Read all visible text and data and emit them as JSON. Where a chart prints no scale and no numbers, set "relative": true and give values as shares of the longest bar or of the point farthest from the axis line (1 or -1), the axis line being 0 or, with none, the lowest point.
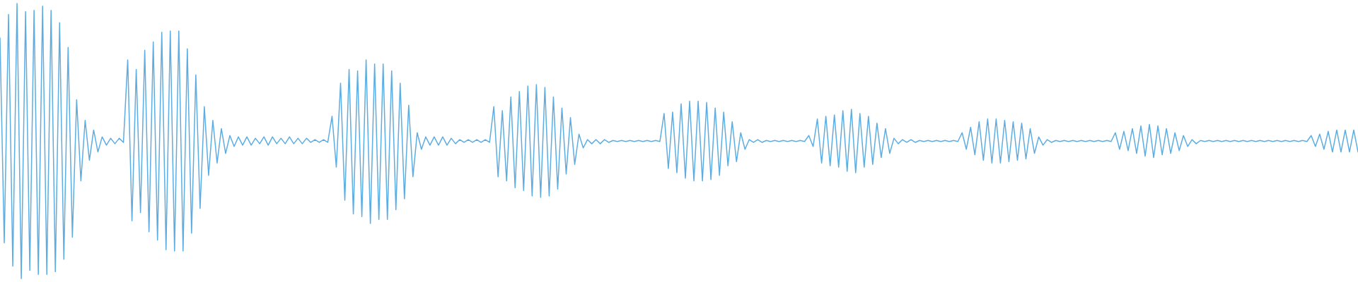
{
  "chart_data": {
    "type": "line",
    "relative": true,
    "color": "#5dade2",
    "categories": [
      null,
      null,
      null,
      null,
      null,
      null,
      null,
      null,
      null,
      null,
      null,
      null,
      null,
      null,
      null,
      null,
      null,
      null,
      null,
      null,
      null,
      null,
      null,
      null,
      null,
      null,
      null,
      null,
      null,
      null,
      null,
      null,
      null,
      null,
      null,
      null,
      null,
      null,
      null,
      null,
      null,
      null,
      null,
      null,
      null,
      null,
      null,
      null,
      null,
      null,
      null,
      null,
      null,
      null,
      null,
      null,
      null,
      null,
      null,
      null,
      null,
      null,
      null,
      null,
      null,
      null,
      null,
      null,
      null,
      null,
      null,
      null,
      null,
      null,
      null,
      null,
      null,
      null,
      null,
      null,
      null,
      null,
      null,
      null,
      null,
      null,
      null,
      null,
      null,
      null,
      null,
      null,
      null,
      null,
      null,
      null,
      null,
      null,
      null,
      null,
      null,
      null,
      null,
      null,
      null,
      null,
      null,
      null,
      null,
      null,
      null,
      null,
      null,
      null,
      null,
      null,
      null,
      null,
      null,
      null,
      null,
      null,
      null,
      null,
      null,
      null,
      null,
      null,
      null,
      null,
      null,
      null,
      null,
      null,
      null,
      null,
      null,
      null,
      null,
      null,
      null,
      null,
      null,
      null,
      null,
      null,
      null,
      null,
      null,
      null,
      null,
      null,
      null,
      null,
      null,
      null,
      null,
      null,
      null,
      null,
      null,
      null,
      null,
      null,
      null,
      null,
      null,
      null,
      null,
      null,
      null,
      null,
      null,
      null,
      null,
      null,
      null,
      null,
      null,
      null,
      null,
      null,
      null,
      null,
      null,
      null,
      null,
      null,
      null,
      null,
      null,
      null,
      null,
      null,
      null,
      null,
      null,
      null,
      null,
      null,
      null,
      null,
      null,
      null,
      null,
      null,
      null,
      null,
      null,
      null,
      null,
      null,
      null,
      null,
      null,
      null,
      null,
      null,
      null,
      null,
      null,
      null,
      null,
      null,
      null,
      null,
      null,
      null,
      null,
      null,
      null,
      null,
      null,
      null,
      null,
      null,
      null,
      null,
      null,
      null,
      null,
      null,
      null,
      null,
      null,
      null,
      null,
      null,
      null,
      null,
      null,
      null,
      null,
      null,
      null,
      null,
      null,
      null,
      null,
      null,
      null,
      null,
      null,
      null,
      null,
      null,
      null,
      null,
      null,
      null,
      null,
      null,
      null,
      null,
      null,
      null,
      null,
      null,
      null,
      null,
      null,
      null,
      null,
      null,
      null,
      null,
      null,
      null,
      null,
      null,
      null,
      null,
      null,
      null,
      null,
      null,
      null,
      null,
      null,
      null,
      null,
      null,
      null,
      null,
      null,
      null,
      null,
      null,
      null,
      null,
      null,
      null,
      null,
      null,
      null,
      null,
      null,
      null,
      null,
      null
    ],
    "values": [
      0.875,
      0.13,
      0.96,
      0.045,
      1,
      0,
      0.97,
      0.03,
      0.975,
      0.015,
      0.99,
      0.015,
      0.975,
      0.025,
      0.93,
      0.07,
      0.84,
      0.15,
      0.65,
      0.355,
      0.575,
      0.43,
      0.54,
      0.46,
      0.515,
      0.485,
      0.51,
      0.49,
      0.51,
      0.495,
      0.795,
      0.21,
      0.76,
      0.24,
      0.83,
      0.17,
      0.86,
      0.14,
      0.895,
      0.105,
      0.9,
      0.1,
      0.9,
      0.1,
      0.835,
      0.165,
      0.74,
      0.255,
      0.625,
      0.375,
      0.575,
      0.42,
      0.545,
      0.455,
      0.52,
      0.48,
      0.515,
      0.485,
      0.515,
      0.485,
      0.51,
      0.49,
      0.515,
      0.485,
      0.515,
      0.49,
      0.51,
      0.49,
      0.515,
      0.49,
      0.51,
      0.49,
      0.51,
      0.495,
      0.505,
      0.495,
      0.505,
      0.495,
      0.59,
      0.405,
      0.71,
      0.285,
      0.76,
      0.235,
      0.755,
      0.225,
      0.795,
      0.2,
      0.78,
      0.215,
      0.78,
      0.215,
      0.755,
      0.25,
      0.71,
      0.29,
      0.63,
      0.37,
      0.53,
      0.47,
      0.515,
      0.485,
      0.515,
      0.485,
      0.515,
      0.485,
      0.51,
      0.49,
      0.505,
      0.495,
      0.505,
      0.495,
      0.505,
      0.495,
      0.505,
      0.495,
      0.625,
      0.37,
      0.61,
      0.355,
      0.66,
      0.33,
      0.68,
      0.32,
      0.7,
      0.3,
      0.705,
      0.295,
      0.695,
      0.3,
      0.66,
      0.325,
      0.62,
      0.38,
      0.585,
      0.415,
      0.525,
      0.475,
      0.505,
      0.49,
      0.505,
      0.49,
      0.505,
      0.495,
      0.502,
      0.498,
      0.502,
      0.498,
      0.502,
      0.498,
      0.502,
      0.498,
      0.502,
      0.498,
      0.502,
      0.498,
      0.6,
      0.4,
      0.605,
      0.385,
      0.635,
      0.365,
      0.645,
      0.355,
      0.645,
      0.355,
      0.64,
      0.36,
      0.62,
      0.375,
      0.605,
      0.41,
      0.57,
      0.425,
      0.53,
      0.47,
      0.505,
      0.495,
      0.505,
      0.495,
      0.502,
      0.498,
      0.502,
      0.498,
      0.502,
      0.498,
      0.502,
      0.498,
      0.502,
      0.498,
      0.52,
      0.48,
      0.58,
      0.42,
      0.59,
      0.41,
      0.595,
      0.405,
      0.61,
      0.39,
      0.615,
      0.385,
      0.6,
      0.405,
      0.59,
      0.415,
      0.565,
      0.44,
      0.545,
      0.455,
      0.51,
      0.49,
      0.505,
      0.495,
      0.505,
      0.495,
      0.502,
      0.498,
      0.502,
      0.498,
      0.502,
      0.498,
      0.502,
      0.498,
      0.502,
      0.498,
      0.53,
      0.47,
      0.55,
      0.45,
      0.57,
      0.43,
      0.58,
      0.42,
      0.58,
      0.42,
      0.575,
      0.425,
      0.57,
      0.43,
      0.565,
      0.435,
      0.545,
      0.455,
      0.515,
      0.485,
      0.505,
      0.495,
      0.502,
      0.498,
      0.502,
      0.498,
      0.502,
      0.498,
      0.502,
      0.498,
      0.502,
      0.498,
      0.502,
      0.498,
      0.502,
      0.498,
      0.53,
      0.47,
      0.535,
      0.465,
      0.545,
      0.455,
      0.555,
      0.445,
      0.56,
      0.44,
      0.555,
      0.45,
      0.545,
      0.455,
      0.53,
      0.465,
      0.52,
      0.48,
      0.505,
      0.49,
      0.502,
      0.498,
      0.502,
      0.498,
      0.502,
      0.498,
      0.502,
      0.498,
      0.502,
      0.498,
      0.502,
      0.498,
      0.502,
      0.498,
      0.502,
      0.498,
      0.502,
      0.498,
      0.502,
      0.498,
      0.502,
      0.498,
      0.502,
      0.498,
      0.502,
      0.498,
      0.52,
      0.48,
      0.525,
      0.47,
      0.535,
      0.46,
      0.54,
      0.46,
      0.54,
      0.46,
      0.54,
      0.46
    ]
  }
}
